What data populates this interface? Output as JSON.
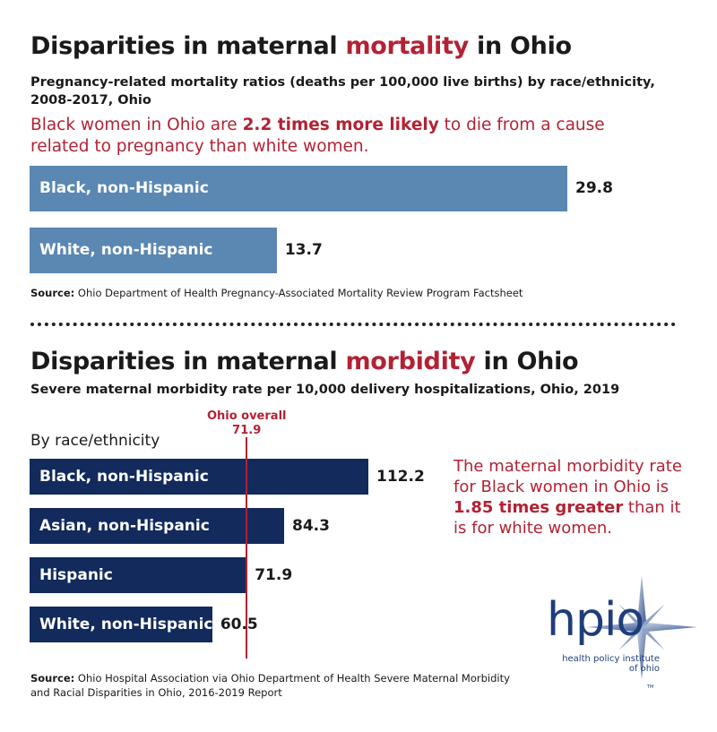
{
  "section1": {
    "title_pre": "Disparities in maternal ",
    "title_accent": "mortality",
    "title_post": " in Ohio",
    "subtitle": "Pregnancy-related mortality ratios (deaths per 100,000 live births) by race/ethnicity, 2008-2017, Ohio",
    "callout_pre": "Black women in Ohio are ",
    "callout_bold": "2.2 times more likely",
    "callout_post": " to die from a cause related to pregnancy than white women.",
    "source_bold": "Source:",
    "source_text": " Ohio Department of Health Pregnancy-Associated Mortality Review Program Factsheet"
  },
  "section2": {
    "title_pre": "Disparities in maternal ",
    "title_accent": "morbidity",
    "title_post": " in Ohio",
    "subtitle": "Severe maternal morbidity rate per 10,000 delivery hospitalizations, Ohio, 2019",
    "group_label": "By race/ethnicity",
    "callout_pre": "The maternal morbidity rate for Black women in Ohio is ",
    "callout_bold": "1.85 times greater",
    "callout_post": " than it is for white women.",
    "source_bold": "Source:",
    "source_text": " Ohio Hospital Association via Ohio Department of Health Severe Maternal Morbidity and Racial Disparities in Ohio, 2016-2019 Report"
  },
  "logo": {
    "wordmark": "hpio",
    "line1": "health policy institute",
    "line2": "of ohio",
    "tm": "TM"
  },
  "colors": {
    "accent": "#b22234",
    "bar_mortality": "#5b87b3",
    "bar_morbidity": "#122a5c",
    "reference_line": "#b22234"
  },
  "chart_data": [
    {
      "type": "bar",
      "orientation": "horizontal",
      "categories": [
        "Black, non-Hispanic",
        "White, non-Hispanic"
      ],
      "values": [
        29.8,
        13.7
      ],
      "value_labels": [
        "29.8",
        "13.7"
      ],
      "title": "Disparities in maternal mortality in Ohio",
      "subtitle": "Pregnancy-related mortality ratios (deaths per 100,000 live births) by race/ethnicity, 2008-2017, Ohio",
      "xlim": [
        0,
        29.8
      ]
    },
    {
      "type": "bar",
      "orientation": "horizontal",
      "categories": [
        "Black, non-Hispanic",
        "Asian, non-Hispanic",
        "Hispanic",
        "White, non-Hispanic"
      ],
      "values": [
        112.2,
        84.3,
        71.9,
        60.5
      ],
      "value_labels": [
        "112.2",
        "84.3",
        "71.9",
        "60.5"
      ],
      "title": "Disparities in maternal morbidity in Ohio",
      "subtitle": "Severe maternal morbidity rate per 10,000 delivery hospitalizations, Ohio, 2019",
      "xlim": [
        0,
        112.2
      ],
      "reference_line": {
        "label": "Ohio overall",
        "value": 71.9,
        "value_label": "71.9"
      }
    }
  ]
}
